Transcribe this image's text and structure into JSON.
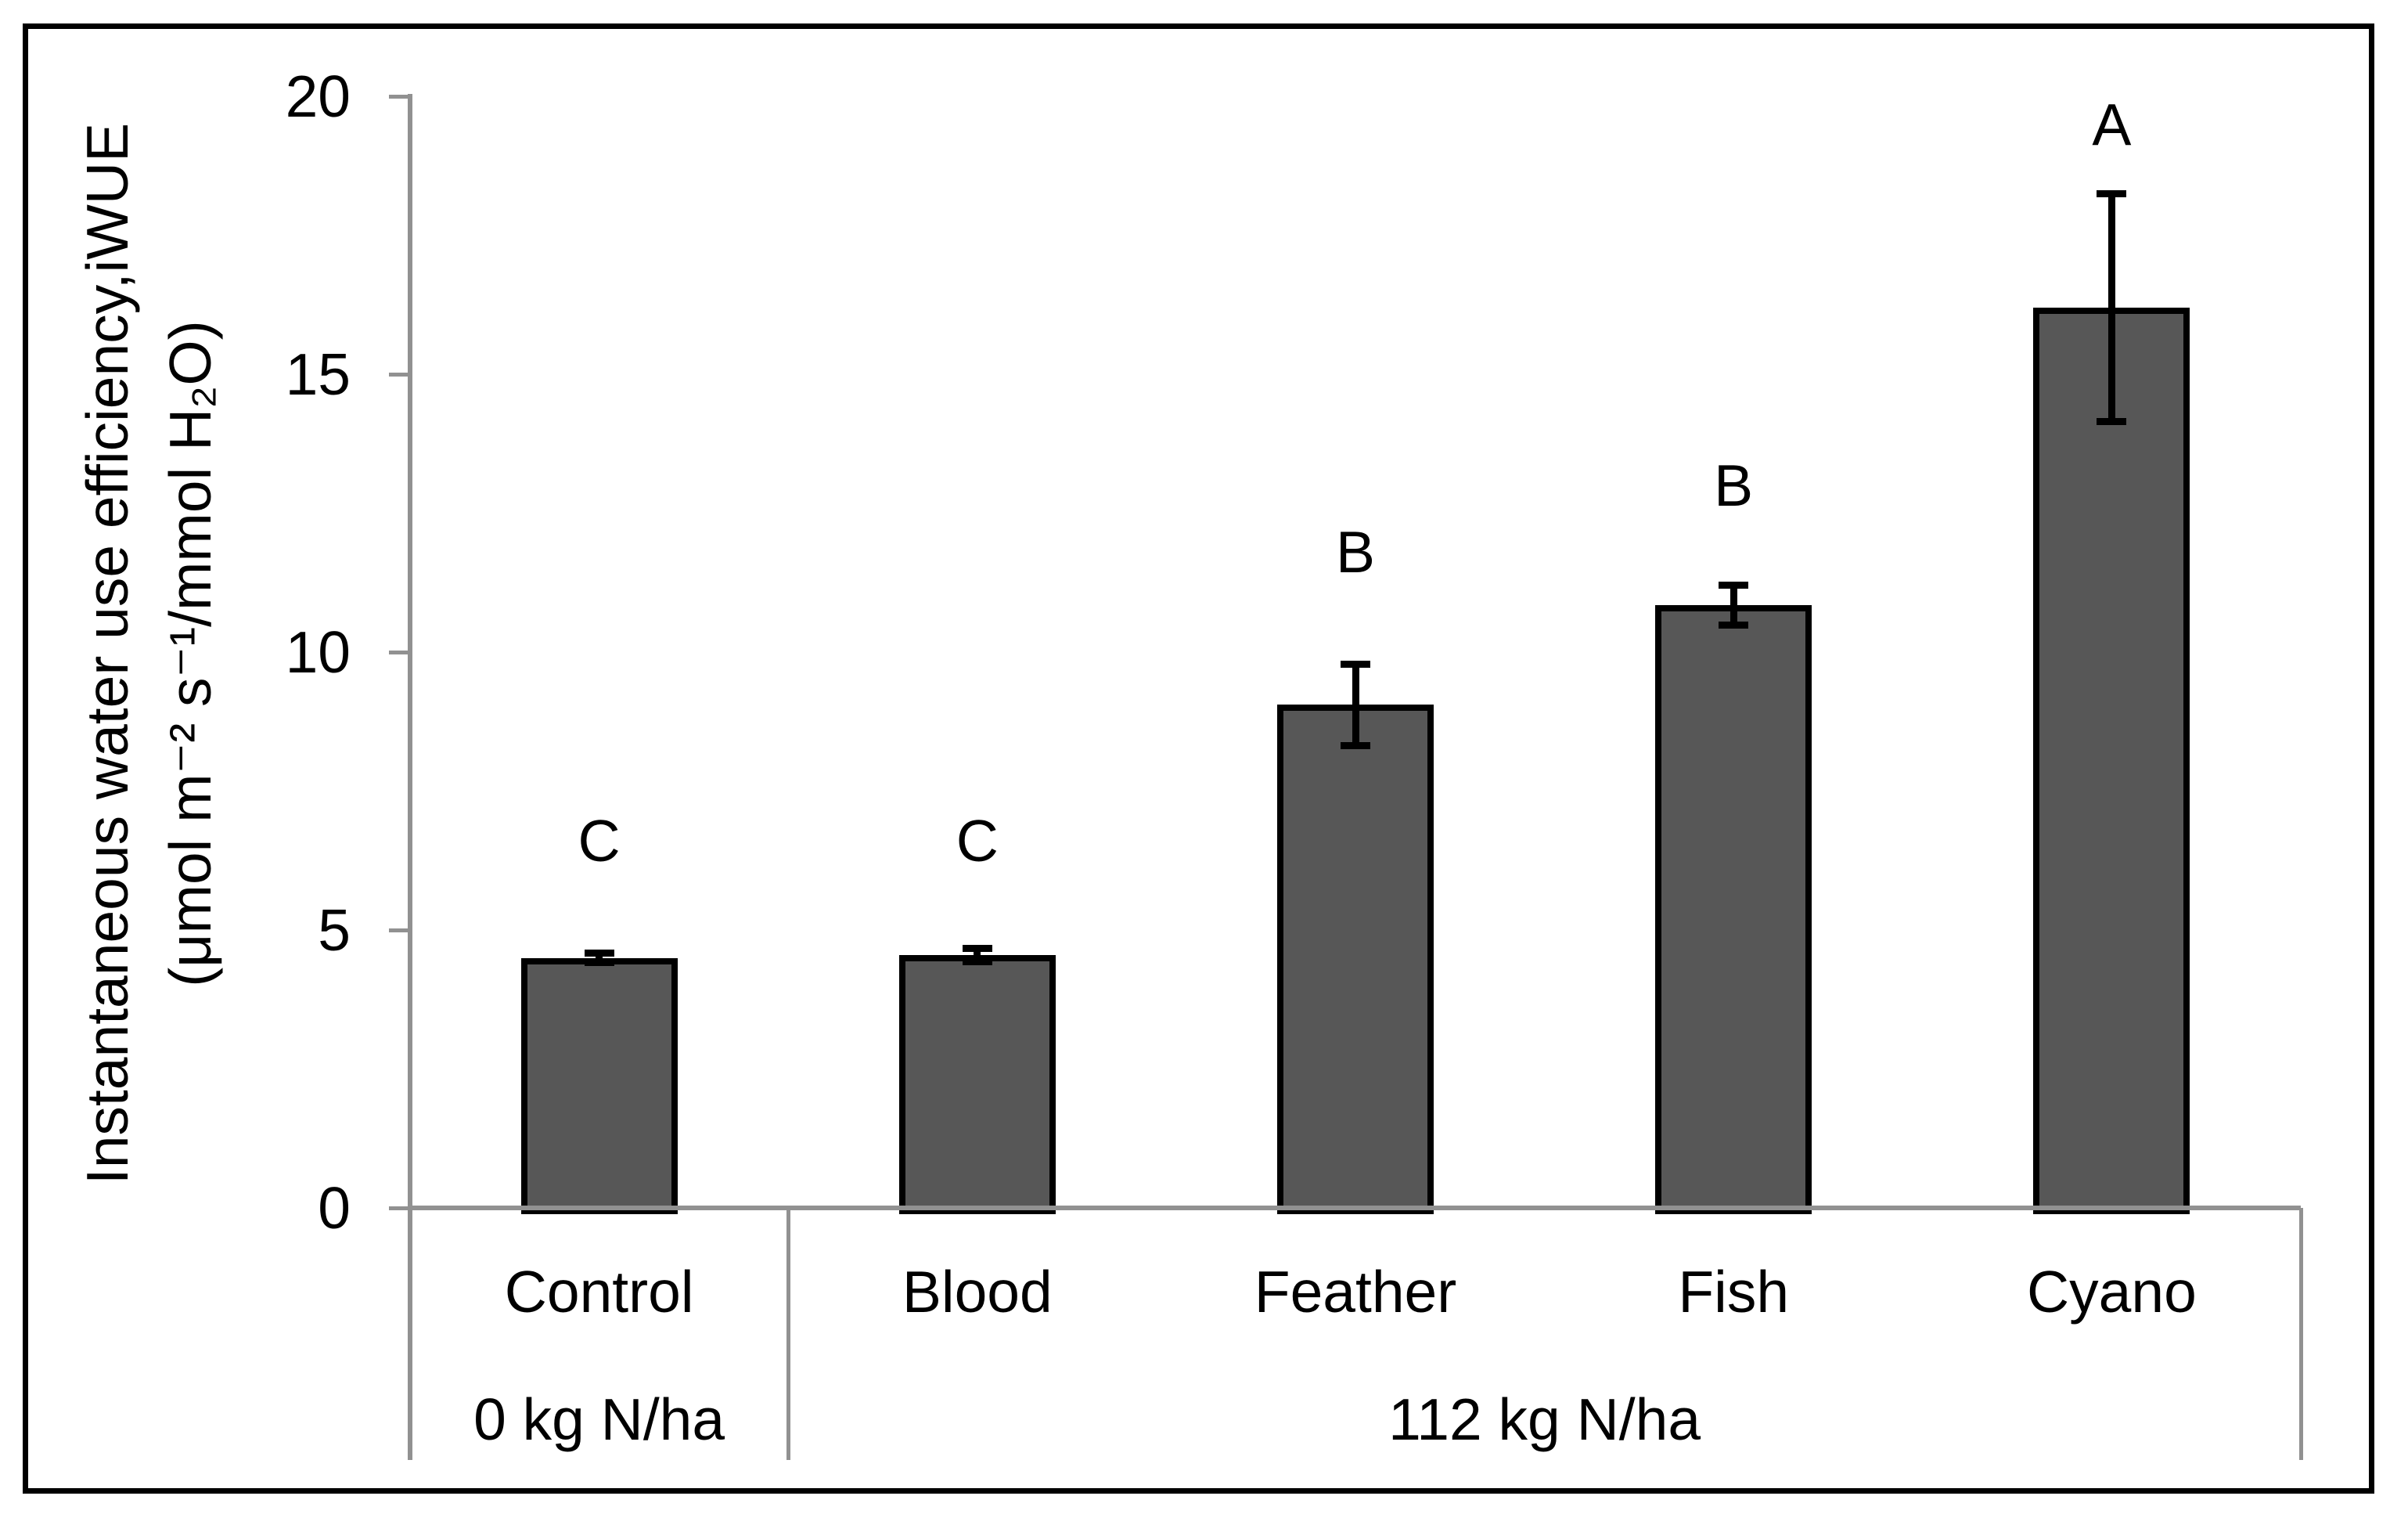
{
  "chart_data": {
    "type": "bar",
    "title": "",
    "xlabel": "",
    "ylabel_line1": "Instantaneous water use efficiency,iWUE",
    "ylabel_line2": "(μmol m⁻² s⁻¹/mmol H₂O)",
    "ylim": [
      0,
      20
    ],
    "yticks": [
      0,
      5,
      10,
      15,
      20
    ],
    "grid": false,
    "legend": "none",
    "bar_color": "#575757",
    "bar_border_color": "#000000",
    "axis_color": "#919191",
    "categories": [
      "Control",
      "Blood",
      "Feather",
      "Fish",
      "Cyano"
    ],
    "values": [
      4.5,
      4.55,
      9.05,
      10.85,
      16.2
    ],
    "errors": [
      0.08,
      0.12,
      0.73,
      0.36,
      2.05
    ],
    "sig_letters": [
      "C",
      "C",
      "B",
      "B",
      "A"
    ],
    "sig_letter_y": [
      6.6,
      6.6,
      11.8,
      13.0,
      19.5
    ],
    "groups": [
      {
        "label": "0 kg N/ha",
        "categories": [
          "Control"
        ]
      },
      {
        "label": "112 kg N/ha",
        "categories": [
          "Blood",
          "Feather",
          "Fish",
          "Cyano"
        ]
      }
    ]
  }
}
